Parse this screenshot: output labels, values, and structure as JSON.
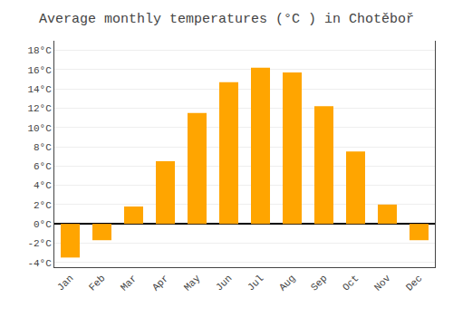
{
  "chart_data": {
    "type": "bar",
    "title": "Average monthly temperatures (°C ) in Chotěboř",
    "categories": [
      "Jan",
      "Feb",
      "Mar",
      "Apr",
      "May",
      "Jun",
      "Jul",
      "Aug",
      "Sep",
      "Oct",
      "Nov",
      "Dec"
    ],
    "values": [
      -3.5,
      -1.7,
      1.8,
      6.5,
      11.5,
      14.7,
      16.2,
      15.7,
      12.2,
      7.5,
      2.0,
      -1.7
    ],
    "color": "#FFA500",
    "ylim": [
      -4.5,
      19
    ],
    "yticks": [
      {
        "value": -4,
        "label": "-4°C"
      },
      {
        "value": -2,
        "label": "-2°C"
      },
      {
        "value": 0,
        "label": "0°C"
      },
      {
        "value": 2,
        "label": "2°C"
      },
      {
        "value": 4,
        "label": "4°C"
      },
      {
        "value": 6,
        "label": "6°C"
      },
      {
        "value": 8,
        "label": "8°C"
      },
      {
        "value": 10,
        "label": "10°C"
      },
      {
        "value": 12,
        "label": "12°C"
      },
      {
        "value": 14,
        "label": "14°C"
      },
      {
        "value": 16,
        "label": "16°C"
      },
      {
        "value": 18,
        "label": "18°C"
      }
    ],
    "grid": true
  }
}
